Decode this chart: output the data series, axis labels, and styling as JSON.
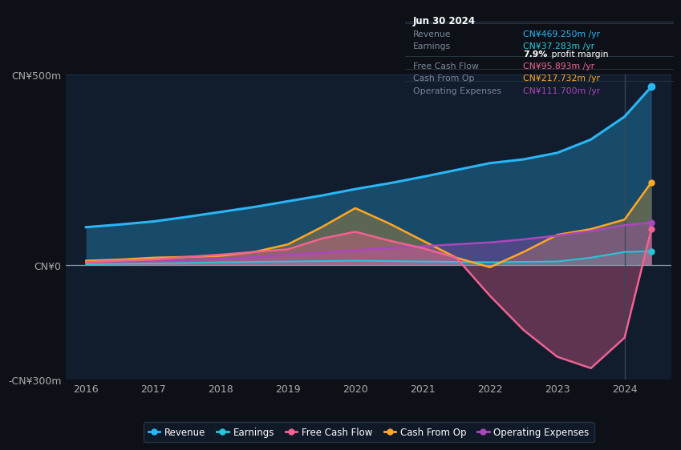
{
  "background_color": "#0d1117",
  "plot_bg_color": "#111c2d",
  "years": [
    2016,
    2016.5,
    2017,
    2017.5,
    2018,
    2018.5,
    2019,
    2019.5,
    2020,
    2020.5,
    2021,
    2021.5,
    2022,
    2022.5,
    2023,
    2023.5,
    2024,
    2024.4
  ],
  "revenue": [
    100,
    107,
    115,
    127,
    140,
    153,
    168,
    183,
    200,
    215,
    232,
    250,
    268,
    278,
    295,
    330,
    390,
    469
  ],
  "earnings": [
    3,
    4,
    5,
    6,
    8,
    9,
    10,
    11,
    12,
    11,
    10,
    9,
    8,
    9,
    10,
    20,
    35,
    37
  ],
  "free_cash_flow": [
    8,
    12,
    15,
    22,
    28,
    35,
    42,
    70,
    88,
    65,
    45,
    20,
    -80,
    -170,
    -240,
    -270,
    -190,
    96
  ],
  "cash_from_op": [
    12,
    15,
    20,
    22,
    25,
    35,
    55,
    100,
    150,
    110,
    65,
    20,
    -5,
    35,
    80,
    95,
    120,
    218
  ],
  "operating_expenses": [
    8,
    10,
    12,
    14,
    17,
    21,
    28,
    33,
    40,
    45,
    50,
    55,
    60,
    68,
    78,
    90,
    105,
    112
  ],
  "revenue_color": "#29b6f6",
  "earnings_color": "#26c6da",
  "fcf_color": "#f06292",
  "cfop_color": "#ffa726",
  "opex_color": "#ab47bc",
  "ylim_top": 500,
  "ylim_bottom": -300,
  "yticks": [
    -300,
    0,
    500
  ],
  "ytick_labels": [
    "-CN¥300m",
    "CN¥0",
    "CN¥500m"
  ],
  "xlim_left": 2015.7,
  "xlim_right": 2024.7,
  "xticks": [
    2016,
    2017,
    2018,
    2019,
    2020,
    2021,
    2022,
    2023,
    2024
  ],
  "tooltip_title": "Jun 30 2024",
  "tooltip_rows": [
    {
      "label": "Revenue",
      "value": "CN¥469.250m /yr",
      "color": "#29b6f6",
      "divider_after": true
    },
    {
      "label": "Earnings",
      "value": "CN¥37.283m /yr",
      "color": "#26c6da",
      "divider_after": false
    },
    {
      "label": "",
      "value": "7.9% profit margin",
      "color": "#ffffff",
      "bold_prefix": "7.9%",
      "divider_after": true
    },
    {
      "label": "Free Cash Flow",
      "value": "CN¥95.893m /yr",
      "color": "#f06292",
      "divider_after": true
    },
    {
      "label": "Cash From Op",
      "value": "CN¥217.732m /yr",
      "color": "#ffa726",
      "divider_after": true
    },
    {
      "label": "Operating Expenses",
      "value": "CN¥111.700m /yr",
      "color": "#ab47bc",
      "divider_after": false
    }
  ],
  "legend_items": [
    {
      "label": "Revenue",
      "color": "#29b6f6"
    },
    {
      "label": "Earnings",
      "color": "#26c6da"
    },
    {
      "label": "Free Cash Flow",
      "color": "#f06292"
    },
    {
      "label": "Cash From Op",
      "color": "#ffa726"
    },
    {
      "label": "Operating Expenses",
      "color": "#ab47bc"
    }
  ]
}
